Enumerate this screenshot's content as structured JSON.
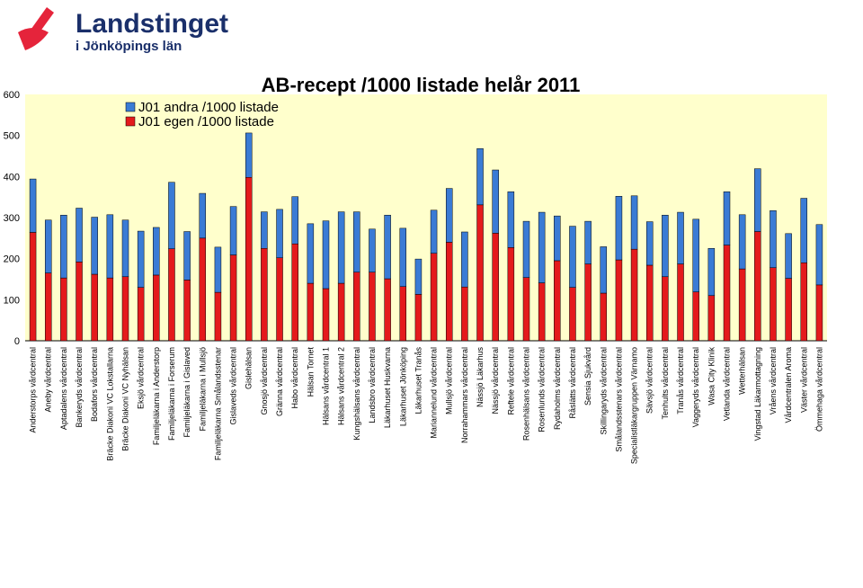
{
  "brand": {
    "name": "Landstinget",
    "subtitle": "i Jönköpings län",
    "color": "#e5243b",
    "text_color": "#1a2f6a"
  },
  "chart_data": {
    "type": "bar",
    "stacked": true,
    "title": "AB-recept /1000 listade helår 2011",
    "xlabel": "",
    "ylabel": "",
    "ylim": [
      0,
      600
    ],
    "yticks": [
      0,
      100,
      200,
      300,
      400,
      500,
      600
    ],
    "grid": false,
    "legend_position": "top-left",
    "plot_background": "#ffffcc",
    "categories": [
      "Anderstorps vårdcentral",
      "Aneby vårdcentral",
      "Aptadalens vårdcentral",
      "Bankeryds vårdcentral",
      "Bodafors vårdcentral",
      "Bräcke Diakoni VC Lokstallarna",
      "Bräcke Diakoni VC Nyhälsan",
      "Eksjö vårdcentral",
      "Familjeläkarna i Anderstorp",
      "Familjeläkarna i Forserum",
      "Familjeläkarna i Gislaved",
      "Familjeläkarna i Mullsjö",
      "Familjeläkarna Smålandsstenar",
      "Gislaveds vårdcentral",
      "Gislehälsan",
      "Gnosjö vårdcentral",
      "Gränna vårdcentral",
      "Habo vårdcentral",
      "Hälsan Tornet",
      "Hälsans vårdcentral 1",
      "Hälsans vårdcentral 2",
      "Kungshälsans vårdcentral",
      "Landsbro vårdcentral",
      "Läkarhuset Huskvarna",
      "Läkarhuset Jönköping",
      "Läkarhuset Tranås",
      "Mariannelund vårdcentral",
      "Mullsjö vårdcentral",
      "Norrahammars vårdcentral",
      "Nässjö Läkarhus",
      "Nässjö vårdcentral",
      "Reftele vårdcentral",
      "Rosenhälsans vårdcentral",
      "Rosenlunds vårdcentral",
      "Rydaholms vårdcentral",
      "Råslätts vårdcentral",
      "Sensia Sjukvård",
      "Skillingaryds vårdcentral",
      "Smålandsstenars vårdcentral",
      "Specialistläkargruppen Värnamo",
      "Sävsjö vårdcentral",
      "Tenhults vårdcentral",
      "Tranås vårdcentral",
      "Vaggeryds vårdcentral",
      "Wasa City Klinik",
      "Vetlanda vårdcentral",
      "Wetterhälsan",
      "Vingstad Läkarmottagning",
      "Vråens vårdcentral",
      "Vårdcentralen Aroma",
      "Väster vårdcentral",
      "Ömmehaga vårdcentral"
    ],
    "series": [
      {
        "name": "J01 egen /1000 listade",
        "color": "#e41a1c",
        "values": [
          264,
          165,
          153,
          192,
          162,
          153,
          156,
          130,
          160,
          224,
          148,
          250,
          118,
          209,
          398,
          225,
          202,
          236,
          140,
          127,
          140,
          167,
          167,
          151,
          132,
          113,
          213,
          240,
          131,
          331,
          262,
          227,
          154,
          141,
          195,
          130,
          187,
          116,
          197,
          223,
          184,
          156,
          187,
          119,
          110,
          233,
          175,
          266,
          178,
          152,
          190,
          136
        ]
      },
      {
        "name": "J01 andra /1000 listade",
        "color": "#3a7bd5",
        "values": [
          130,
          129,
          153,
          131,
          139,
          154,
          138,
          137,
          116,
          162,
          118,
          109,
          110,
          118,
          108,
          89,
          118,
          115,
          145,
          165,
          174,
          147,
          105,
          155,
          142,
          86,
          105,
          131,
          134,
          137,
          154,
          136,
          137,
          172,
          109,
          149,
          104,
          113,
          155,
          130,
          106,
          150,
          126,
          177,
          115,
          130,
          132,
          153,
          139,
          109,
          157,
          147
        ]
      }
    ]
  }
}
